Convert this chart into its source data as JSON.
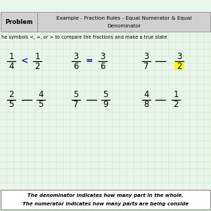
{
  "title_col1": "Problem",
  "title_col2_line1": "Example - Fraction Rules - Equal Numerator & Equal",
  "title_col2_line2": "Denominator",
  "instruction": "he symbols <, =, or > to compare the fractions and make a true state",
  "row1": [
    {
      "n1": "1",
      "d1": "4",
      "sym": "<",
      "n2": "1",
      "d2": "2",
      "sym_color": "#1a1acc",
      "has_sym": true
    },
    {
      "n1": "3",
      "d1": "6",
      "sym": "=",
      "n2": "3",
      "d2": "6",
      "sym_color": "#1a1acc",
      "has_sym": true
    },
    {
      "n1": "3",
      "d1": "7",
      "sym": "",
      "n2": "3",
      "d2": "2",
      "sym_color": "#000000",
      "has_sym": false
    }
  ],
  "row2": [
    {
      "n1": "2",
      "d1": "5",
      "sym": "",
      "n2": "4",
      "d2": "5",
      "sym_color": "#000000",
      "has_sym": false
    },
    {
      "n1": "5",
      "d1": "7",
      "sym": "",
      "n2": "5",
      "d2": "9",
      "sym_color": "#000000",
      "has_sym": false
    },
    {
      "n1": "4",
      "d1": "8",
      "sym": "",
      "n2": "1",
      "d2": "2",
      "sym_color": "#000000",
      "has_sym": false
    }
  ],
  "footnote1": "The denominator indicates how many part in the whole.",
  "footnote2": "The numerator indicates how many parts are being conside",
  "bg_color": "#eaf5ea",
  "header_bg": "#d0d0d0",
  "footnote_bg": "#ffffff",
  "highlight_color": "#ffff00",
  "grid_color": "#c8e0c8"
}
